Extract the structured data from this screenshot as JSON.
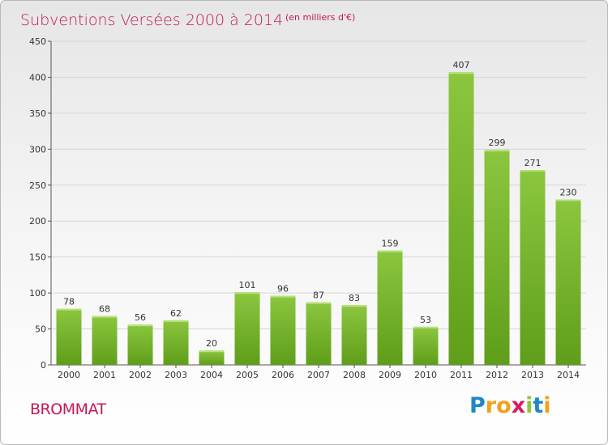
{
  "chart_data": {
    "type": "bar",
    "title": "Subventions Versées 2000 à 2014",
    "subtitle": "(en milliers d'€)",
    "categories": [
      "2000",
      "2001",
      "2002",
      "2003",
      "2004",
      "2005",
      "2006",
      "2007",
      "2008",
      "2009",
      "2010",
      "2011",
      "2012",
      "2013",
      "2014"
    ],
    "values": [
      78,
      68,
      56,
      62,
      20,
      101,
      96,
      87,
      83,
      159,
      53,
      407,
      299,
      271,
      230
    ],
    "ylim": [
      0,
      450
    ],
    "yticks": [
      0,
      50,
      100,
      150,
      200,
      250,
      300,
      350,
      400,
      450
    ],
    "grid": true,
    "bar_color": "#8cc63f",
    "bar_color_dark": "#5f9e1a"
  },
  "footer": {
    "label": "BROMMAT",
    "logo_letters": [
      "P",
      "r",
      "o",
      "x",
      "i",
      "t",
      "i"
    ],
    "logo_colors": [
      "#1e88c7",
      "#f5a01a",
      "#f5a01a",
      "#d81b60",
      "#8cc63f",
      "#1e88c7",
      "#f5a01a"
    ]
  }
}
